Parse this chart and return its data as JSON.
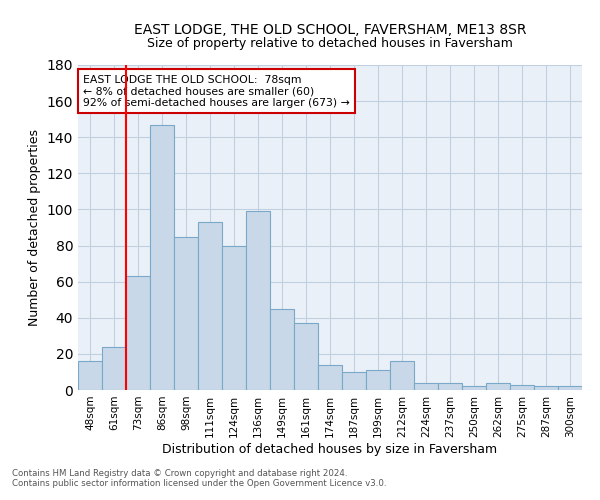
{
  "title": "EAST LODGE, THE OLD SCHOOL, FAVERSHAM, ME13 8SR",
  "subtitle": "Size of property relative to detached houses in Faversham",
  "xlabel": "Distribution of detached houses by size in Faversham",
  "ylabel": "Number of detached properties",
  "categories": [
    "48sqm",
    "61sqm",
    "73sqm",
    "86sqm",
    "98sqm",
    "111sqm",
    "124sqm",
    "136sqm",
    "149sqm",
    "161sqm",
    "174sqm",
    "187sqm",
    "199sqm",
    "212sqm",
    "224sqm",
    "237sqm",
    "250sqm",
    "262sqm",
    "275sqm",
    "287sqm",
    "300sqm"
  ],
  "values": [
    16,
    24,
    63,
    147,
    85,
    93,
    80,
    99,
    45,
    37,
    14,
    10,
    11,
    16,
    4,
    4,
    2,
    4,
    3,
    2,
    2
  ],
  "bar_color": "#c8d8e8",
  "bar_edge_color": "#7aa8c8",
  "grid_color": "#c0d0e0",
  "bg_color": "#eaf0f8",
  "red_line_index": 2,
  "annotation_text": "EAST LODGE THE OLD SCHOOL:  78sqm\n← 8% of detached houses are smaller (60)\n92% of semi-detached houses are larger (673) →",
  "annotation_box_color": "#ffffff",
  "annotation_box_edge": "#cc0000",
  "ylim": [
    0,
    180
  ],
  "yticks": [
    0,
    20,
    40,
    60,
    80,
    100,
    120,
    140,
    160,
    180
  ],
  "footer1": "Contains HM Land Registry data © Crown copyright and database right 2024.",
  "footer2": "Contains public sector information licensed under the Open Government Licence v3.0."
}
